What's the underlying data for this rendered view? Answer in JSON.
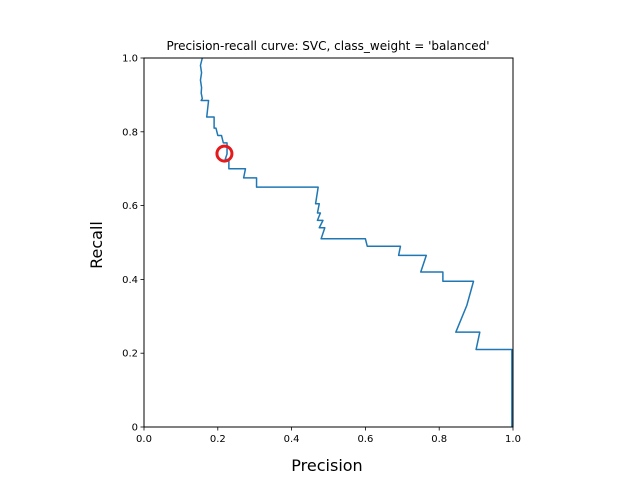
{
  "chart_data": {
    "type": "line",
    "title": "Precision-recall curve: SVC, class_weight = 'balanced'",
    "xlabel": "Precision",
    "ylabel": "Recall",
    "xlim": [
      0,
      1
    ],
    "ylim": [
      0,
      1
    ],
    "x_ticks": [
      "0.0",
      "0.2",
      "0.4",
      "0.6",
      "0.8",
      "1.0"
    ],
    "y_ticks": [
      "0",
      "0.2",
      "0.4",
      "0.6",
      "0.8",
      "1.0"
    ],
    "grid": false,
    "line_color": "#1f77b4",
    "marker_color": "#e41a1c",
    "series": [
      {
        "points": [
          [
            0.158,
            1.0
          ],
          [
            0.153,
            0.98
          ],
          [
            0.156,
            0.96
          ],
          [
            0.153,
            0.94
          ],
          [
            0.156,
            0.92
          ],
          [
            0.155,
            0.905
          ],
          [
            0.158,
            0.89
          ],
          [
            0.155,
            0.885
          ],
          [
            0.175,
            0.885
          ],
          [
            0.17,
            0.84
          ],
          [
            0.19,
            0.84
          ],
          [
            0.19,
            0.81
          ],
          [
            0.195,
            0.81
          ],
          [
            0.2,
            0.79
          ],
          [
            0.21,
            0.79
          ],
          [
            0.215,
            0.77
          ],
          [
            0.225,
            0.77
          ],
          [
            0.225,
            0.74
          ],
          [
            0.22,
            0.725
          ],
          [
            0.23,
            0.725
          ],
          [
            0.23,
            0.7
          ],
          [
            0.275,
            0.7
          ],
          [
            0.27,
            0.675
          ],
          [
            0.305,
            0.675
          ],
          [
            0.305,
            0.65
          ],
          [
            0.472,
            0.65
          ],
          [
            0.465,
            0.605
          ],
          [
            0.475,
            0.605
          ],
          [
            0.47,
            0.58
          ],
          [
            0.478,
            0.58
          ],
          [
            0.47,
            0.56
          ],
          [
            0.485,
            0.56
          ],
          [
            0.475,
            0.54
          ],
          [
            0.49,
            0.54
          ],
          [
            0.48,
            0.51
          ],
          [
            0.6,
            0.51
          ],
          [
            0.605,
            0.49
          ],
          [
            0.695,
            0.49
          ],
          [
            0.69,
            0.465
          ],
          [
            0.765,
            0.465
          ],
          [
            0.75,
            0.42
          ],
          [
            0.81,
            0.42
          ],
          [
            0.81,
            0.395
          ],
          [
            0.893,
            0.395
          ],
          [
            0.875,
            0.33
          ],
          [
            0.845,
            0.257
          ],
          [
            0.91,
            0.257
          ],
          [
            0.9,
            0.21
          ],
          [
            0.997,
            0.21
          ],
          [
            0.997,
            0.0
          ]
        ]
      }
    ],
    "markers": [
      {
        "x": 0.218,
        "y": 0.741,
        "shape": "circle",
        "fill": "none"
      }
    ]
  }
}
